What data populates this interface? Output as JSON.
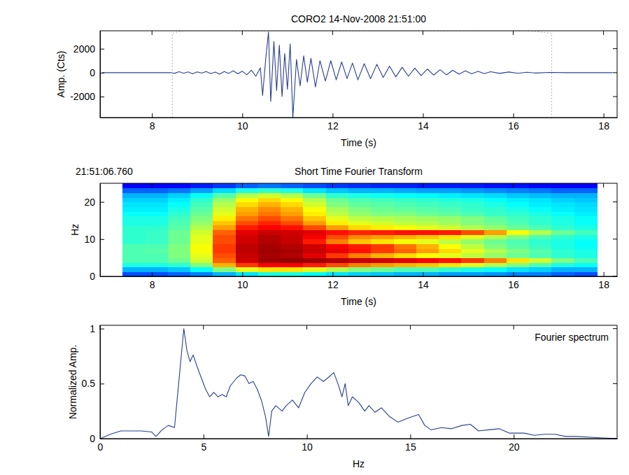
{
  "chart_data": [
    {
      "type": "line",
      "title": "CORO2 14-Nov-2008 21:51:00",
      "x_label": "Time (s)",
      "y_label": "Amp. (Cts)",
      "xlim": [
        6.85,
        18.3
      ],
      "ylim": [
        -3750,
        3500
      ],
      "xticks": [
        8,
        10,
        12,
        14,
        16,
        18
      ],
      "yticks": [
        -2000,
        0,
        2000
      ],
      "grid": false,
      "series": [
        {
          "color": "#283f8f",
          "x": [
            6.9,
            7.5,
            8.0,
            8.4,
            8.5,
            8.6,
            8.7,
            8.8,
            8.9,
            9.0,
            9.1,
            9.2,
            9.3,
            9.4,
            9.5,
            9.6,
            9.7,
            9.8,
            9.9,
            10.0,
            10.1,
            10.2,
            10.3,
            10.4,
            10.45,
            10.52,
            10.58,
            10.63,
            10.7,
            10.76,
            10.82,
            10.88,
            10.94,
            11.0,
            11.06,
            11.12,
            11.2,
            11.28,
            11.36,
            11.44,
            11.52,
            11.62,
            11.72,
            11.84,
            11.96,
            12.08,
            12.2,
            12.32,
            12.44,
            12.56,
            12.7,
            12.84,
            12.98,
            13.12,
            13.26,
            13.4,
            13.54,
            13.68,
            13.82,
            13.96,
            14.1,
            14.24,
            14.38,
            14.52,
            14.66,
            14.8,
            14.94,
            15.08,
            15.22,
            15.36,
            15.5,
            15.7,
            15.9,
            16.1,
            16.3,
            16.5,
            16.8,
            17.2,
            18.2
          ],
          "values": [
            0,
            0,
            0,
            10,
            -60,
            80,
            -50,
            60,
            -90,
            70,
            -40,
            90,
            -80,
            50,
            -120,
            100,
            -60,
            150,
            -100,
            120,
            -180,
            200,
            -300,
            400,
            -1900,
            1200,
            3400,
            -2400,
            2600,
            -1500,
            2300,
            -2000,
            1600,
            -1400,
            2400,
            -3750,
            1100,
            -1100,
            1400,
            -800,
            1200,
            -1200,
            1000,
            -700,
            1000,
            -600,
            900,
            -500,
            800,
            -600,
            750,
            -500,
            700,
            -400,
            550,
            -350,
            450,
            -300,
            380,
            -250,
            300,
            -200,
            250,
            -180,
            200,
            -130,
            150,
            -100,
            110,
            -80,
            80,
            -60,
            60,
            -50,
            40,
            -30,
            20,
            0,
            0
          ]
        },
        {
          "color": "#9a9a9a",
          "line_style": "dotted",
          "x": [
            8.45,
            8.45,
            8.7,
            16.3,
            16.85,
            16.85
          ],
          "values": [
            -3750,
            3300,
            3500,
            3500,
            3300,
            -3750
          ]
        }
      ]
    },
    {
      "type": "heatmap",
      "title": "Short Time Fourier Transform",
      "annotation": "21:51:06.760",
      "x_label": "Time (s)",
      "y_label": "Hz",
      "xlim": [
        6.85,
        18.3
      ],
      "ylim": [
        0,
        25
      ],
      "xticks": [
        8,
        10,
        12,
        14,
        16,
        18
      ],
      "yticks": [
        0,
        10,
        20
      ],
      "zlim": [
        0,
        1
      ],
      "x": [
        7.6,
        8.1,
        8.6,
        9.1,
        9.6,
        10.1,
        10.6,
        11.1,
        11.6,
        12.1,
        12.6,
        13.1,
        13.6,
        14.1,
        14.6,
        15.1,
        15.6,
        16.1,
        16.6,
        17.1,
        17.6
      ],
      "y": [
        0.625,
        1.875,
        3.125,
        4.375,
        5.625,
        6.875,
        8.125,
        9.375,
        10.625,
        11.875,
        13.125,
        14.375,
        15.625,
        16.875,
        18.125,
        19.375,
        20.625,
        21.875,
        23.125,
        24.375
      ],
      "z": [
        [
          0.2,
          0.2,
          0.22,
          0.25,
          0.3,
          0.35,
          0.4,
          0.4,
          0.38,
          0.35,
          0.33,
          0.32,
          0.3,
          0.3,
          0.28,
          0.28,
          0.27,
          0.25,
          0.25,
          0.22,
          0.2
        ],
        [
          0.3,
          0.3,
          0.32,
          0.38,
          0.5,
          0.6,
          0.65,
          0.65,
          0.6,
          0.55,
          0.5,
          0.48,
          0.45,
          0.45,
          0.42,
          0.4,
          0.38,
          0.35,
          0.33,
          0.3,
          0.3
        ],
        [
          0.4,
          0.4,
          0.42,
          0.5,
          0.7,
          0.82,
          0.88,
          0.88,
          0.85,
          0.8,
          0.75,
          0.72,
          0.7,
          0.68,
          0.65,
          0.6,
          0.55,
          0.5,
          0.45,
          0.4,
          0.38
        ],
        [
          0.45,
          0.45,
          0.48,
          0.58,
          0.78,
          0.92,
          0.97,
          0.98,
          0.97,
          0.95,
          0.93,
          0.92,
          0.9,
          0.88,
          0.86,
          0.82,
          0.75,
          0.65,
          0.58,
          0.5,
          0.45
        ],
        [
          0.45,
          0.45,
          0.5,
          0.6,
          0.8,
          0.93,
          0.96,
          0.95,
          0.9,
          0.82,
          0.75,
          0.7,
          0.66,
          0.62,
          0.6,
          0.56,
          0.52,
          0.48,
          0.45,
          0.42,
          0.4
        ],
        [
          0.45,
          0.46,
          0.5,
          0.62,
          0.82,
          0.94,
          0.97,
          0.96,
          0.93,
          0.9,
          0.86,
          0.82,
          0.78,
          0.72,
          0.66,
          0.6,
          0.55,
          0.5,
          0.46,
          0.42,
          0.4
        ],
        [
          0.45,
          0.45,
          0.5,
          0.62,
          0.82,
          0.94,
          0.96,
          0.95,
          0.92,
          0.88,
          0.85,
          0.82,
          0.76,
          0.7,
          0.62,
          0.56,
          0.5,
          0.46,
          0.43,
          0.4,
          0.38
        ],
        [
          0.42,
          0.43,
          0.48,
          0.6,
          0.8,
          0.92,
          0.95,
          0.93,
          0.85,
          0.75,
          0.68,
          0.65,
          0.62,
          0.6,
          0.56,
          0.52,
          0.48,
          0.45,
          0.42,
          0.4,
          0.38
        ],
        [
          0.42,
          0.43,
          0.48,
          0.6,
          0.8,
          0.92,
          0.95,
          0.93,
          0.88,
          0.8,
          0.74,
          0.72,
          0.7,
          0.68,
          0.65,
          0.6,
          0.55,
          0.5,
          0.45,
          0.42,
          0.4
        ],
        [
          0.42,
          0.43,
          0.48,
          0.58,
          0.78,
          0.9,
          0.93,
          0.92,
          0.9,
          0.86,
          0.84,
          0.85,
          0.86,
          0.86,
          0.85,
          0.8,
          0.72,
          0.62,
          0.55,
          0.48,
          0.44
        ],
        [
          0.42,
          0.42,
          0.46,
          0.55,
          0.72,
          0.85,
          0.88,
          0.86,
          0.8,
          0.72,
          0.66,
          0.64,
          0.62,
          0.6,
          0.58,
          0.55,
          0.52,
          0.48,
          0.45,
          0.42,
          0.4
        ],
        [
          0.4,
          0.4,
          0.45,
          0.52,
          0.68,
          0.8,
          0.84,
          0.8,
          0.72,
          0.64,
          0.6,
          0.58,
          0.56,
          0.55,
          0.53,
          0.5,
          0.48,
          0.45,
          0.42,
          0.4,
          0.38
        ],
        [
          0.4,
          0.4,
          0.44,
          0.5,
          0.64,
          0.76,
          0.8,
          0.76,
          0.68,
          0.6,
          0.56,
          0.55,
          0.54,
          0.53,
          0.52,
          0.5,
          0.47,
          0.44,
          0.42,
          0.4,
          0.38
        ],
        [
          0.38,
          0.38,
          0.42,
          0.48,
          0.6,
          0.72,
          0.76,
          0.72,
          0.64,
          0.56,
          0.52,
          0.5,
          0.5,
          0.48,
          0.47,
          0.45,
          0.43,
          0.42,
          0.4,
          0.38,
          0.36
        ],
        [
          0.36,
          0.36,
          0.4,
          0.46,
          0.58,
          0.7,
          0.74,
          0.7,
          0.62,
          0.54,
          0.5,
          0.48,
          0.47,
          0.46,
          0.45,
          0.43,
          0.42,
          0.4,
          0.38,
          0.36,
          0.35
        ],
        [
          0.35,
          0.35,
          0.38,
          0.44,
          0.55,
          0.66,
          0.7,
          0.66,
          0.58,
          0.5,
          0.47,
          0.46,
          0.45,
          0.44,
          0.43,
          0.42,
          0.4,
          0.38,
          0.36,
          0.35,
          0.34
        ],
        [
          0.33,
          0.33,
          0.36,
          0.42,
          0.52,
          0.62,
          0.66,
          0.62,
          0.55,
          0.48,
          0.45,
          0.44,
          0.43,
          0.42,
          0.41,
          0.4,
          0.38,
          0.36,
          0.35,
          0.33,
          0.32
        ],
        [
          0.3,
          0.3,
          0.33,
          0.38,
          0.46,
          0.55,
          0.58,
          0.55,
          0.48,
          0.42,
          0.4,
          0.39,
          0.38,
          0.37,
          0.36,
          0.35,
          0.34,
          0.32,
          0.31,
          0.3,
          0.3
        ],
        [
          0.22,
          0.22,
          0.24,
          0.28,
          0.34,
          0.4,
          0.42,
          0.4,
          0.35,
          0.32,
          0.3,
          0.3,
          0.29,
          0.28,
          0.28,
          0.27,
          0.26,
          0.25,
          0.24,
          0.22,
          0.22
        ],
        [
          0.12,
          0.12,
          0.13,
          0.15,
          0.18,
          0.22,
          0.24,
          0.22,
          0.2,
          0.18,
          0.17,
          0.16,
          0.16,
          0.15,
          0.15,
          0.15,
          0.14,
          0.14,
          0.13,
          0.12,
          0.12
        ]
      ]
    },
    {
      "type": "line",
      "annotation": "Fourier spectrum",
      "x_label": "Hz",
      "y_label": "Normalized Amp.",
      "xlim": [
        0,
        25
      ],
      "ylim": [
        0,
        1.03
      ],
      "xticks": [
        0,
        5,
        10,
        15,
        20
      ],
      "yticks": [
        0,
        0.5,
        1
      ],
      "grid": false,
      "series": [
        {
          "color": "#283f8f",
          "x": [
            0,
            0.5,
            1,
            1.5,
            2,
            2.5,
            2.7,
            3,
            3.3,
            3.6,
            3.8,
            4.05,
            4.2,
            4.35,
            4.5,
            4.7,
            4.9,
            5.1,
            5.3,
            5.5,
            5.7,
            5.9,
            6.1,
            6.3,
            6.6,
            6.8,
            7.0,
            7.2,
            7.4,
            7.6,
            7.8,
            8.0,
            8.15,
            8.3,
            8.5,
            8.8,
            9.0,
            9.3,
            9.6,
            9.9,
            10.2,
            10.5,
            10.8,
            11.0,
            11.3,
            11.5,
            11.7,
            11.85,
            12.0,
            12.2,
            12.5,
            12.8,
            13.0,
            13.3,
            13.6,
            14.0,
            14.4,
            14.8,
            15.1,
            15.4,
            15.7,
            16.0,
            16.5,
            17.0,
            17.5,
            17.9,
            18.3,
            18.8,
            19.3,
            19.8,
            20.5,
            21,
            21.5,
            22,
            22.5,
            23,
            24,
            25
          ],
          "values": [
            0,
            0.04,
            0.07,
            0.07,
            0.07,
            0.06,
            0.02,
            0.08,
            0.12,
            0.1,
            0.5,
            1.0,
            0.8,
            0.7,
            0.76,
            0.65,
            0.55,
            0.45,
            0.38,
            0.42,
            0.38,
            0.4,
            0.38,
            0.48,
            0.55,
            0.58,
            0.57,
            0.5,
            0.52,
            0.45,
            0.35,
            0.2,
            0.02,
            0.25,
            0.3,
            0.25,
            0.3,
            0.35,
            0.28,
            0.42,
            0.5,
            0.56,
            0.52,
            0.55,
            0.6,
            0.5,
            0.38,
            0.5,
            0.3,
            0.38,
            0.33,
            0.25,
            0.3,
            0.24,
            0.28,
            0.2,
            0.15,
            0.18,
            0.2,
            0.22,
            0.12,
            0.08,
            0.1,
            0.09,
            0.12,
            0.13,
            0.07,
            0.08,
            0.09,
            0.05,
            0.05,
            0.03,
            0.04,
            0.04,
            0.02,
            0.02,
            0.01,
            0
          ]
        }
      ]
    }
  ]
}
